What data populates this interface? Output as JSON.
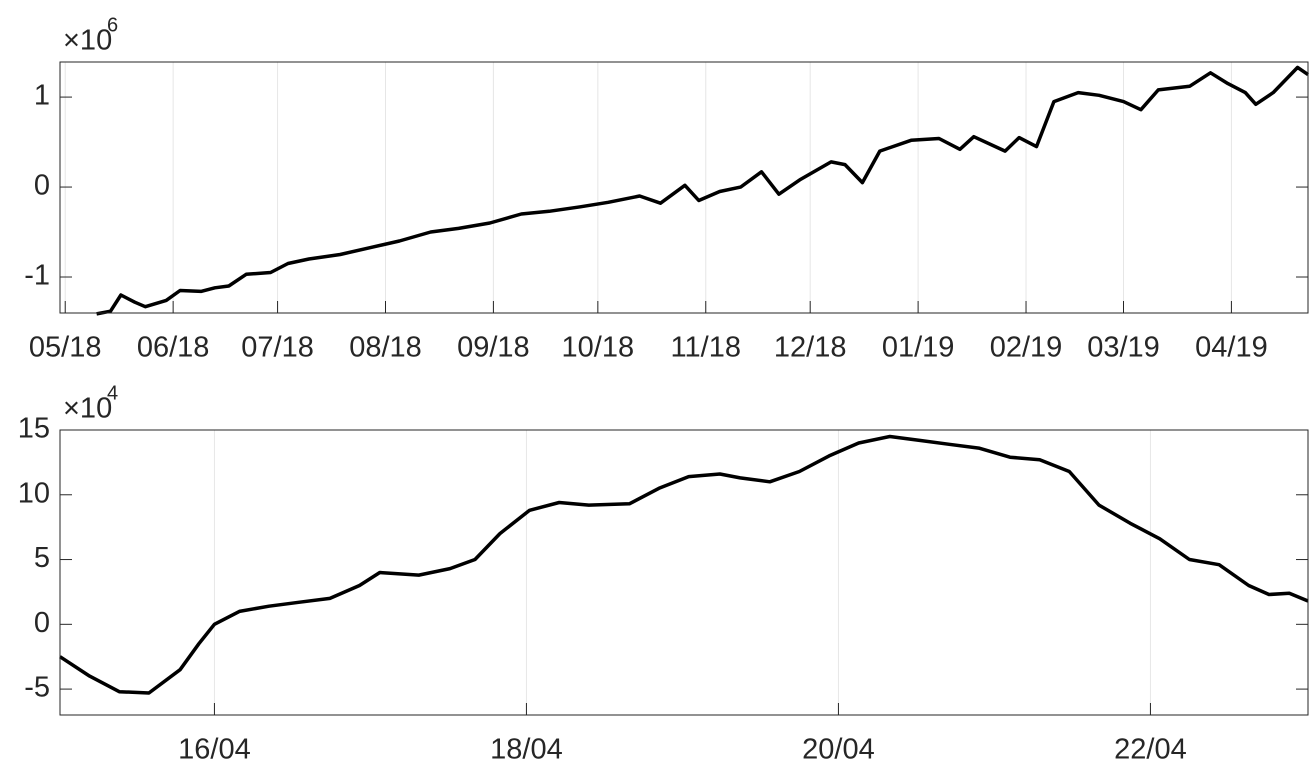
{
  "chart_data": [
    {
      "type": "line",
      "exponent_label": {
        "base": "×10",
        "power": "6"
      },
      "xlim": [
        -1.5,
        357
      ],
      "ylim": [
        -1.4,
        1.39
      ],
      "xticks": [
        {
          "value": 0,
          "label": "05/18"
        },
        {
          "value": 31,
          "label": "06/18"
        },
        {
          "value": 61,
          "label": "07/18"
        },
        {
          "value": 92,
          "label": "08/18"
        },
        {
          "value": 123,
          "label": "09/18"
        },
        {
          "value": 153,
          "label": "10/18"
        },
        {
          "value": 184,
          "label": "11/18"
        },
        {
          "value": 214,
          "label": "12/18"
        },
        {
          "value": 245,
          "label": "01/19"
        },
        {
          "value": 276,
          "label": "02/19"
        },
        {
          "value": 304,
          "label": "03/19"
        },
        {
          "value": 335,
          "label": "04/19"
        }
      ],
      "yticks": [
        -1,
        0,
        1
      ],
      "grid": "x",
      "series": [
        {
          "color": "#000000",
          "x": [
            9,
            13,
            16,
            20,
            23,
            29,
            33,
            39,
            43,
            47,
            52,
            59,
            64,
            70,
            79,
            88,
            96,
            105,
            113,
            122,
            131,
            139,
            148,
            156,
            165,
            171,
            178,
            182,
            188,
            194,
            200,
            205,
            211,
            220,
            224,
            229,
            234,
            243,
            251,
            257,
            261,
            270,
            274,
            279,
            284,
            291,
            297,
            304,
            309,
            314,
            323,
            329,
            334,
            339,
            342,
            347,
            354,
            357
          ],
          "values": [
            -1.41,
            -1.38,
            -1.2,
            -1.28,
            -1.33,
            -1.26,
            -1.15,
            -1.16,
            -1.12,
            -1.1,
            -0.97,
            -0.95,
            -0.85,
            -0.8,
            -0.75,
            -0.67,
            -0.6,
            -0.5,
            -0.46,
            -0.4,
            -0.3,
            -0.27,
            -0.22,
            -0.17,
            -0.1,
            -0.18,
            0.02,
            -0.15,
            -0.05,
            0.0,
            0.17,
            -0.08,
            0.08,
            0.28,
            0.25,
            0.05,
            0.4,
            0.52,
            0.54,
            0.42,
            0.56,
            0.4,
            0.55,
            0.45,
            0.95,
            1.05,
            1.02,
            0.95,
            0.86,
            1.08,
            1.12,
            1.27,
            1.15,
            1.05,
            0.92,
            1.05,
            1.33,
            1.25
          ]
        }
      ]
    },
    {
      "type": "line",
      "exponent_label": {
        "base": "×10",
        "power": "4"
      },
      "xlim": [
        -0.99,
        7.01
      ],
      "ylim": [
        -7,
        15
      ],
      "xticks": [
        {
          "value": 0,
          "label": "16/04"
        },
        {
          "value": 2,
          "label": "18/04"
        },
        {
          "value": 4,
          "label": "20/04"
        },
        {
          "value": 6,
          "label": "22/04"
        }
      ],
      "yticks": [
        -5,
        0,
        5,
        10,
        15
      ],
      "grid": "x",
      "series": [
        {
          "color": "#000000",
          "x": [
            -0.99,
            -0.8,
            -0.61,
            -0.42,
            -0.22,
            -0.1,
            0,
            0.16,
            0.35,
            0.54,
            0.74,
            0.93,
            1.06,
            1.31,
            1.51,
            1.67,
            1.83,
            2.02,
            2.21,
            2.4,
            2.66,
            2.85,
            3.04,
            3.24,
            3.37,
            3.56,
            3.75,
            3.94,
            4.13,
            4.33,
            4.52,
            4.71,
            4.9,
            5.1,
            5.29,
            5.48,
            5.67,
            5.87,
            6.06,
            6.25,
            6.44,
            6.63,
            6.76,
            6.89,
            7.01
          ],
          "values": [
            -2.5,
            -4.0,
            -5.2,
            -5.3,
            -3.5,
            -1.5,
            0,
            1.0,
            1.4,
            1.7,
            2.0,
            3.0,
            4.0,
            3.8,
            4.3,
            5.0,
            7.0,
            8.8,
            9.4,
            9.2,
            9.3,
            10.5,
            11.4,
            11.6,
            11.3,
            11.0,
            11.8,
            13.0,
            14.0,
            14.5,
            14.2,
            13.9,
            13.6,
            12.9,
            12.7,
            11.8,
            9.2,
            7.8,
            6.6,
            5.0,
            4.6,
            3.0,
            2.3,
            2.4,
            1.8
          ]
        }
      ]
    }
  ]
}
